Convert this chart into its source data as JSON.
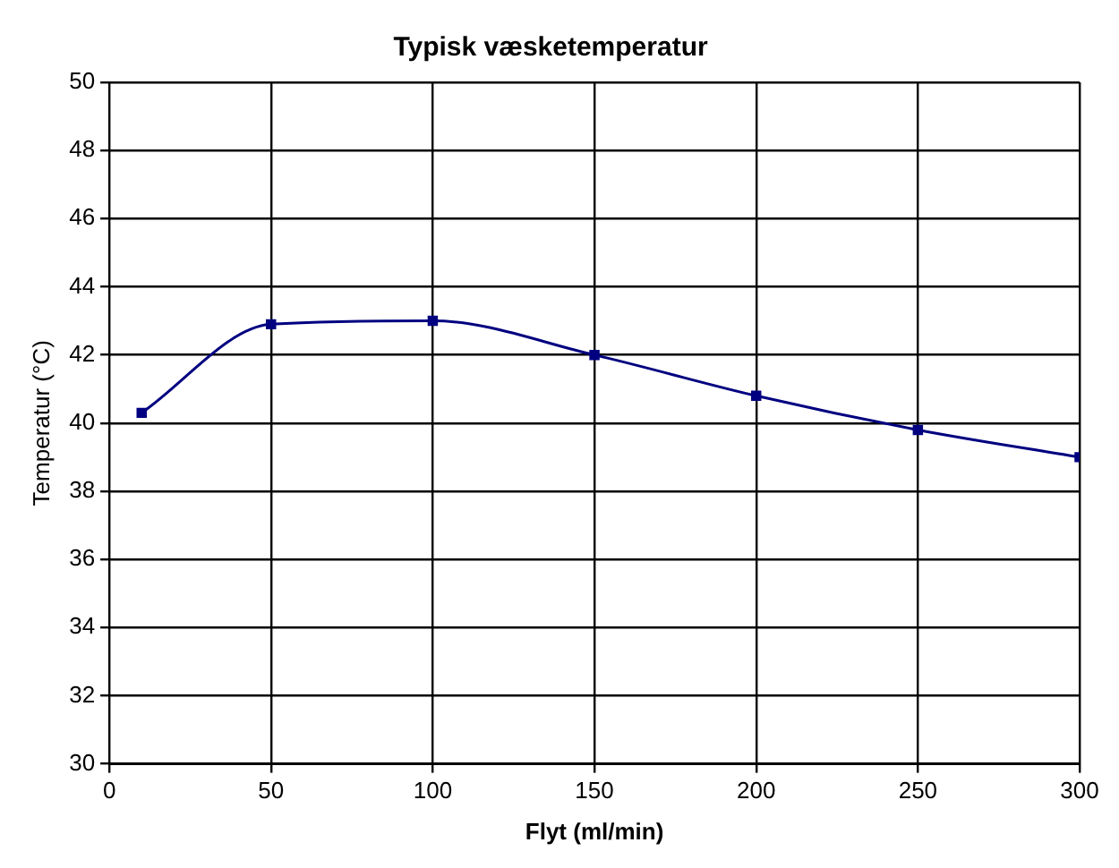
{
  "chart_data": {
    "type": "line",
    "title": "Typisk væsketemperatur",
    "xlabel": "Flyt (ml/min)",
    "ylabel": "Temperatur (°C)",
    "x": [
      10,
      50,
      100,
      150,
      200,
      250,
      300
    ],
    "series": [
      {
        "color": "#000080",
        "values": [
          40.3,
          42.9,
          43.0,
          42.0,
          40.8,
          39.8,
          39.0
        ]
      }
    ],
    "xlim": [
      0,
      300
    ],
    "xticks": [
      0,
      50,
      100,
      150,
      200,
      250,
      300
    ],
    "ylim": [
      30,
      50
    ],
    "yticks": [
      30,
      32,
      34,
      36,
      38,
      40,
      42,
      44,
      46,
      48,
      50
    ],
    "grid": true,
    "marker": "square",
    "line_style": "solid"
  }
}
